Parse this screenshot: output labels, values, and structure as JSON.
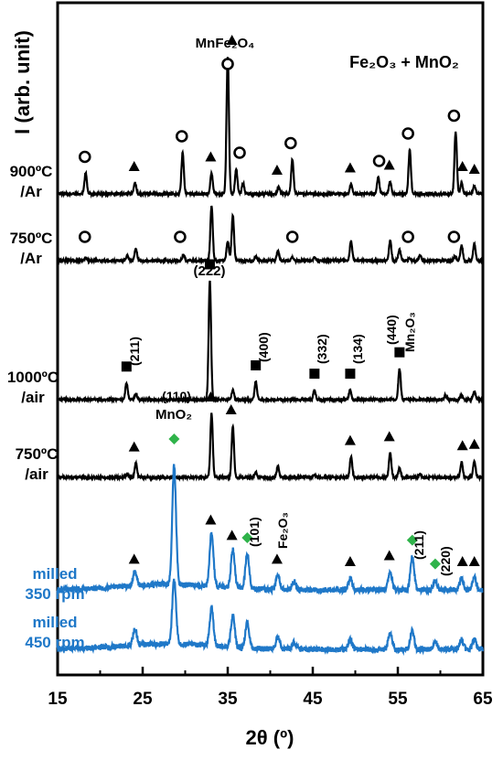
{
  "chart_data": {
    "type": "line",
    "xlabel": "2θ (º)",
    "ylabel": "I (arb. unit)",
    "xlim": [
      15,
      65
    ],
    "x_ticks": [
      "15",
      "25",
      "35",
      "45",
      "55",
      "65"
    ],
    "y_ticks": "none",
    "grid": false,
    "legend": "none",
    "sample_title": "Fe₂O₃ + MnO₂",
    "series": [
      {
        "name": "900ºC /Ar",
        "name_lines": [
          "900ºC",
          "/Ar"
        ],
        "color": "#000000",
        "peaks": [
          [
            18.3,
            0.15
          ],
          [
            24.1,
            0.08
          ],
          [
            29.7,
            0.3
          ],
          [
            33.1,
            0.15
          ],
          [
            35.0,
            1.0
          ],
          [
            36.0,
            0.18
          ],
          [
            36.8,
            0.08
          ],
          [
            41.0,
            0.05
          ],
          [
            42.6,
            0.25
          ],
          [
            49.5,
            0.07
          ],
          [
            52.7,
            0.12
          ],
          [
            54.1,
            0.09
          ],
          [
            56.4,
            0.32
          ],
          [
            61.8,
            0.45
          ],
          [
            62.5,
            0.08
          ],
          [
            64.0,
            0.06
          ]
        ]
      },
      {
        "name": "750ºC /Ar",
        "name_lines": [
          "750ºC",
          "/Ar"
        ],
        "color": "#000000",
        "peaks": [
          [
            18.3,
            0.05
          ],
          [
            23.2,
            0.08
          ],
          [
            24.2,
            0.22
          ],
          [
            29.8,
            0.1
          ],
          [
            33.1,
            1.0
          ],
          [
            35.0,
            0.35
          ],
          [
            35.6,
            0.82
          ],
          [
            38.3,
            0.07
          ],
          [
            40.9,
            0.18
          ],
          [
            42.6,
            0.05
          ],
          [
            45.2,
            0.07
          ],
          [
            49.5,
            0.36
          ],
          [
            54.1,
            0.36
          ],
          [
            55.2,
            0.2
          ],
          [
            56.4,
            0.05
          ],
          [
            57.6,
            0.1
          ],
          [
            61.7,
            0.08
          ],
          [
            62.5,
            0.28
          ],
          [
            64.0,
            0.3
          ]
        ]
      },
      {
        "name": "1000ºC /air",
        "name_lines": [
          "1000ºC",
          "/air"
        ],
        "color": "#000000",
        "peaks": [
          [
            23.1,
            0.14
          ],
          [
            24.2,
            0.05
          ],
          [
            32.9,
            1.0
          ],
          [
            35.6,
            0.08
          ],
          [
            38.3,
            0.15
          ],
          [
            45.2,
            0.08
          ],
          [
            49.4,
            0.08
          ],
          [
            55.2,
            0.26
          ],
          [
            60.6,
            0.04
          ],
          [
            62.5,
            0.04
          ],
          [
            64.0,
            0.07
          ]
        ]
      },
      {
        "name": "750ºC /air",
        "name_lines": [
          "750ºC",
          "/air"
        ],
        "color": "#000000",
        "peaks": [
          [
            23.2,
            0.06
          ],
          [
            24.2,
            0.22
          ],
          [
            33.1,
            1.0
          ],
          [
            35.6,
            0.8
          ],
          [
            38.3,
            0.08
          ],
          [
            40.9,
            0.18
          ],
          [
            45.2,
            0.05
          ],
          [
            49.5,
            0.32
          ],
          [
            54.1,
            0.38
          ],
          [
            55.2,
            0.15
          ],
          [
            57.6,
            0.05
          ],
          [
            62.5,
            0.24
          ],
          [
            64.0,
            0.26
          ]
        ]
      },
      {
        "name": "milled 350 rpm",
        "name_lines": [
          "milled",
          "350 rpm"
        ],
        "color": "#1f78c8",
        "peaks": [
          [
            24.1,
            0.12
          ],
          [
            28.7,
            1.0
          ],
          [
            33.1,
            0.45
          ],
          [
            35.6,
            0.32
          ],
          [
            37.3,
            0.3
          ],
          [
            40.9,
            0.12
          ],
          [
            42.8,
            0.07
          ],
          [
            49.4,
            0.1
          ],
          [
            54.1,
            0.15
          ],
          [
            56.7,
            0.28
          ],
          [
            59.4,
            0.08
          ],
          [
            62.5,
            0.1
          ],
          [
            64.0,
            0.1
          ]
        ]
      },
      {
        "name": "milled 450 rpm",
        "name_lines": [
          "milled",
          "450 rpm"
        ],
        "color": "#1f78c8",
        "peaks": [
          [
            24.1,
            0.25
          ],
          [
            28.7,
            1.0
          ],
          [
            33.1,
            0.6
          ],
          [
            35.6,
            0.5
          ],
          [
            37.3,
            0.4
          ],
          [
            40.9,
            0.2
          ],
          [
            42.8,
            0.1
          ],
          [
            49.4,
            0.15
          ],
          [
            54.1,
            0.25
          ],
          [
            56.7,
            0.3
          ],
          [
            59.4,
            0.12
          ],
          [
            62.5,
            0.15
          ],
          [
            64.0,
            0.15
          ]
        ]
      }
    ],
    "phase_markers": {
      "circle": [
        [
          18.2,
          0
        ],
        [
          29.6,
          0
        ],
        [
          36.4,
          0
        ],
        [
          42.4,
          0
        ],
        [
          52.8,
          0
        ],
        [
          56.2,
          0
        ],
        [
          61.6,
          0
        ],
        [
          35.0,
          0
        ],
        [
          18.2,
          1
        ],
        [
          29.4,
          1
        ],
        [
          42.6,
          1
        ],
        [
          56.2,
          1
        ],
        [
          61.6,
          1
        ]
      ],
      "triangle": [
        [
          24.0,
          0
        ],
        [
          33.0,
          0
        ],
        [
          35.5,
          0
        ],
        [
          40.8,
          0
        ],
        [
          49.4,
          0
        ],
        [
          54.0,
          0
        ],
        [
          62.6,
          0
        ],
        [
          64.0,
          0
        ],
        [
          33.0,
          3
        ],
        [
          24.0,
          3
        ],
        [
          35.4,
          3
        ],
        [
          49.4,
          3
        ],
        [
          54.0,
          3
        ],
        [
          62.6,
          3
        ],
        [
          64.0,
          3
        ],
        [
          24.0,
          4
        ],
        [
          33.0,
          4
        ],
        [
          35.5,
          4
        ],
        [
          40.8,
          4
        ],
        [
          49.4,
          4
        ],
        [
          54.0,
          4
        ],
        [
          62.6,
          4
        ],
        [
          64.0,
          4
        ]
      ],
      "square": [
        [
          23.1,
          2
        ],
        [
          32.9,
          2
        ],
        [
          38.3,
          2
        ],
        [
          45.2,
          2
        ],
        [
          49.4,
          2
        ],
        [
          55.2,
          2
        ]
      ],
      "diamond": [
        [
          28.7,
          4
        ],
        [
          37.3,
          4
        ],
        [
          56.7,
          4
        ],
        [
          59.4,
          4
        ]
      ]
    },
    "annotations": {
      "mnfe2o4": "MnFe₂O₄",
      "hkl_222": "(222)",
      "hkl_211_mn": "(211)",
      "hkl_400": "(400)",
      "hkl_332": "(332)",
      "hkl_134": "(134)",
      "hkl_440": "(440)",
      "mn2o3": "Mn₂O₃",
      "hkl_110": "(110)",
      "mno2": "MnO₂",
      "hkl_101": "(101)",
      "fe2o3": "Fe₂O₃",
      "hkl_211_fe": "(211)",
      "hkl_220": "(220)"
    }
  }
}
